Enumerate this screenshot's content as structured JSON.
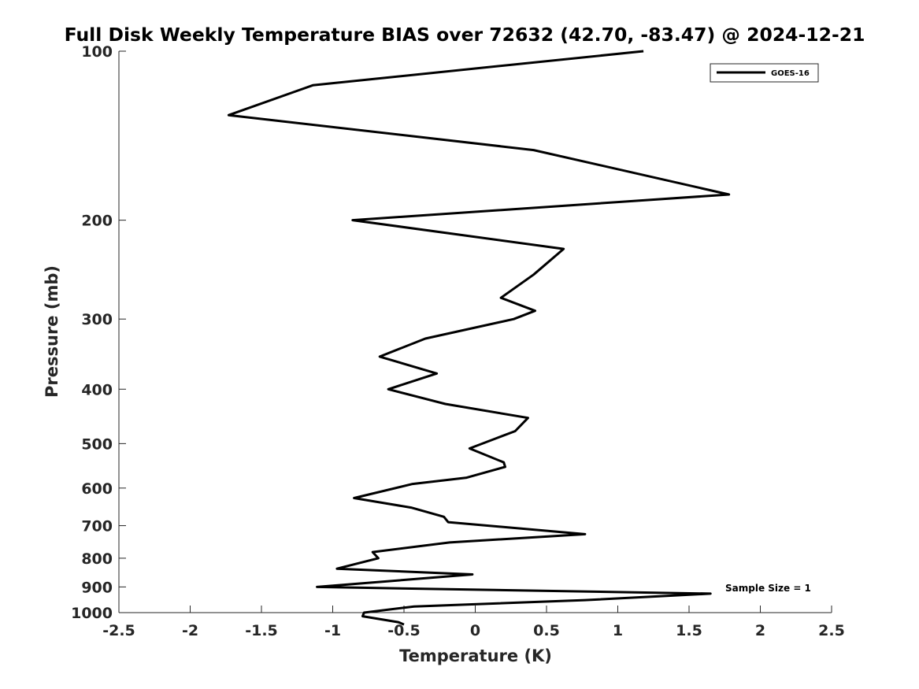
{
  "chart_data": {
    "type": "line",
    "title": "Full Disk Weekly Temperature BIAS over 72632 (42.70, -83.47) @ 2024-12-21",
    "xlabel": "Temperature (K)",
    "ylabel": "Pressure (mb)",
    "xlim": [
      -2.5,
      2.5
    ],
    "ylim": [
      100,
      1000
    ],
    "y_scale": "log",
    "y_reversed": true,
    "x_ticks": [
      -2.5,
      -2,
      -1.5,
      -1,
      -0.5,
      0,
      0.5,
      1,
      1.5,
      2,
      2.5
    ],
    "x_tick_labels": [
      "-2.5",
      "-2",
      "-1.5",
      "-1",
      "-0.5",
      "0",
      "0.5",
      "1",
      "1.5",
      "2",
      "2.5"
    ],
    "y_ticks": [
      100,
      200,
      300,
      400,
      500,
      600,
      700,
      800,
      900,
      1000
    ],
    "y_tick_labels": [
      "100",
      "200",
      "300",
      "400",
      "500",
      "600",
      "700",
      "800",
      "900",
      "1000"
    ],
    "grid": false,
    "legend_position": "top-right",
    "series": [
      {
        "name": "GOES-16",
        "color": "#000000",
        "temperature": [
          1.18,
          -1.14,
          -1.73,
          0.41,
          1.78,
          -0.86,
          0.62,
          0.41,
          0.18,
          0.42,
          0.27,
          -0.35,
          -0.67,
          -0.27,
          -0.61,
          -0.21,
          0.37,
          0.28,
          0.14,
          -0.04,
          0.2,
          0.21,
          -0.06,
          -0.44,
          -0.85,
          -0.45,
          -0.22,
          -0.19,
          0.77,
          -0.18,
          -0.72,
          -0.68,
          -0.97,
          -0.02,
          -1.11,
          1.65,
          0.77,
          -0.43,
          -0.78,
          -0.79,
          -0.54,
          -0.5
        ],
        "pressure": [
          100,
          115,
          130,
          150,
          180,
          200,
          225,
          250,
          275,
          290,
          300,
          325,
          350,
          375,
          400,
          425,
          450,
          475,
          490,
          510,
          540,
          550,
          575,
          590,
          625,
          650,
          675,
          690,
          725,
          750,
          780,
          800,
          835,
          855,
          900,
          925,
          950,
          975,
          1000,
          1015,
          1040,
          1050
        ]
      }
    ],
    "annotations": [
      "Sample Size = 1"
    ]
  }
}
